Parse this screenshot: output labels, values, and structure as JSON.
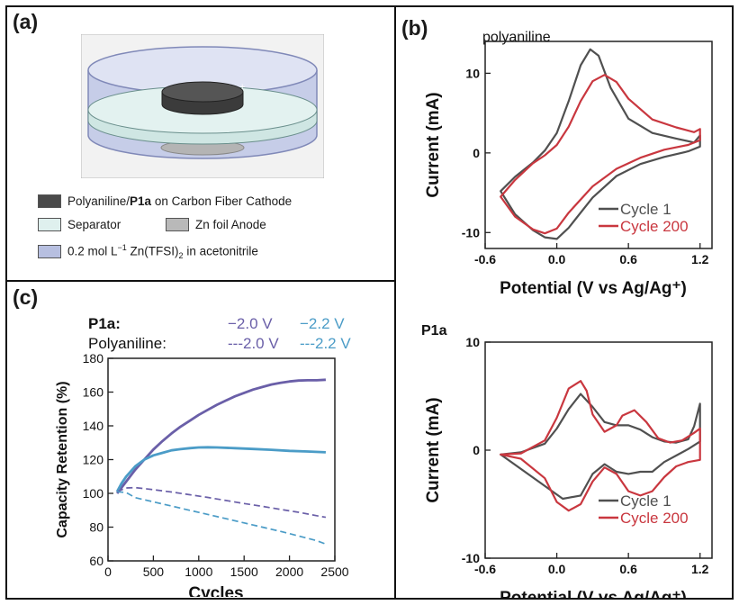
{
  "panels": {
    "a": {
      "label": "(a)",
      "legend": {
        "cathode": {
          "pre": "Polyaniline/",
          "bold": "P1a",
          "post": " on Carbon Fiber Cathode",
          "color": "#4a4a4a"
        },
        "separator": {
          "text": "Separator",
          "color": "#dff0ee"
        },
        "anode": {
          "text": "Zn foil Anode",
          "color": "#b9b9b9"
        },
        "electrolyte": {
          "pre": "0.2 mol L",
          "sup": "−1",
          "mid": " Zn(TFSI)",
          "sub": "2",
          "post": " in acetonitrile",
          "color": "#b7bfe0"
        }
      }
    },
    "b": {
      "label": "(b)"
    },
    "c": {
      "label": "(c)"
    }
  },
  "chart_data": [
    {
      "id": "cv-polyaniline",
      "type": "line",
      "title": "polyaniline",
      "xlabel": "Potential (V vs Ag/Ag⁺)",
      "ylabel": "Current (mA)",
      "xlim": [
        -0.6,
        1.3
      ],
      "ylim": [
        -12,
        14
      ],
      "xticks": [
        "-0.6",
        "0.0",
        "0.6",
        "1.2"
      ],
      "xtick_values": [
        -0.6,
        0.0,
        0.6,
        1.2
      ],
      "yticks": [
        "10",
        "0",
        "-10"
      ],
      "ytick_values": [
        10,
        0,
        -10
      ],
      "legend_position": "bottom-right",
      "series": [
        {
          "name": "Cycle 1",
          "color": "#505050",
          "x": [
            -0.47,
            -0.35,
            -0.2,
            -0.1,
            0.0,
            0.1,
            0.2,
            0.28,
            0.35,
            0.45,
            0.6,
            0.8,
            1.0,
            1.15,
            1.2,
            1.2,
            1.1,
            0.9,
            0.7,
            0.5,
            0.3,
            0.1,
            0.0,
            -0.1,
            -0.2,
            -0.35,
            -0.47
          ],
          "y": [
            -4.8,
            -3.0,
            -1.2,
            0.3,
            2.5,
            6.5,
            11.0,
            13.0,
            12.2,
            8.2,
            4.3,
            2.5,
            1.8,
            1.3,
            2.2,
            0.8,
            0.2,
            -0.5,
            -1.4,
            -2.9,
            -5.6,
            -9.4,
            -10.8,
            -10.6,
            -9.7,
            -7.7,
            -4.8
          ]
        },
        {
          "name": "Cycle 200",
          "color": "#c9373f",
          "x": [
            -0.47,
            -0.35,
            -0.2,
            -0.1,
            0.0,
            0.1,
            0.2,
            0.3,
            0.4,
            0.5,
            0.6,
            0.8,
            1.0,
            1.15,
            1.2,
            1.2,
            1.1,
            0.9,
            0.7,
            0.5,
            0.3,
            0.1,
            0.0,
            -0.1,
            -0.2,
            -0.35,
            -0.47
          ],
          "y": [
            -5.5,
            -3.4,
            -1.3,
            -0.3,
            1.0,
            3.3,
            6.5,
            9.0,
            9.8,
            8.9,
            6.8,
            4.2,
            3.2,
            2.6,
            3.0,
            1.6,
            1.0,
            0.4,
            -0.6,
            -2.0,
            -4.2,
            -7.5,
            -9.5,
            -10.1,
            -9.6,
            -8.0,
            -5.5
          ]
        }
      ]
    },
    {
      "id": "cv-p1a",
      "type": "line",
      "title": "P1a",
      "xlabel": "Potential (V vs Ag/Ag⁺)",
      "ylabel": "Current (mA)",
      "xlim": [
        -0.6,
        1.3
      ],
      "ylim": [
        -10,
        10
      ],
      "xticks": [
        "-0.6",
        "0.0",
        "0.6",
        "1.2"
      ],
      "xtick_values": [
        -0.6,
        0.0,
        0.6,
        1.2
      ],
      "yticks": [
        "10",
        "0",
        "-10"
      ],
      "ytick_values": [
        10,
        0,
        -10
      ],
      "legend_position": "bottom-right",
      "series": [
        {
          "name": "Cycle 1",
          "color": "#505050",
          "x": [
            -0.47,
            -0.3,
            -0.1,
            0.0,
            0.1,
            0.2,
            0.3,
            0.4,
            0.5,
            0.6,
            0.7,
            0.8,
            0.9,
            1.0,
            1.1,
            1.15,
            1.2,
            1.2,
            1.1,
            1.0,
            0.9,
            0.8,
            0.7,
            0.6,
            0.5,
            0.4,
            0.3,
            0.2,
            0.1,
            0.05
          ],
          "y": [
            -0.4,
            -0.2,
            0.6,
            2.0,
            3.8,
            5.2,
            4.0,
            2.6,
            2.3,
            2.3,
            1.9,
            1.2,
            0.8,
            0.7,
            1.0,
            2.2,
            4.3,
            0.8,
            0.1,
            -0.5,
            -1.1,
            -2.0,
            -2.0,
            -2.2,
            -2.0,
            -1.3,
            -2.2,
            -4.2,
            -4.4,
            -4.5
          ]
        },
        {
          "name": "Cycle 200",
          "color": "#c9373f",
          "x": [
            -0.47,
            -0.3,
            -0.1,
            0.0,
            0.1,
            0.2,
            0.25,
            0.3,
            0.4,
            0.5,
            0.55,
            0.65,
            0.75,
            0.85,
            0.95,
            1.05,
            1.15,
            1.2,
            1.2,
            1.1,
            1.0,
            0.9,
            0.8,
            0.7,
            0.6,
            0.5,
            0.4,
            0.3,
            0.2,
            0.1,
            0.0,
            -0.1,
            -0.3,
            -0.47
          ],
          "y": [
            -0.4,
            -0.3,
            0.9,
            3.0,
            5.7,
            6.4,
            5.5,
            3.3,
            1.7,
            2.3,
            3.2,
            3.7,
            2.6,
            1.1,
            0.7,
            0.9,
            1.6,
            2.0,
            -0.9,
            -1.1,
            -1.5,
            -2.5,
            -3.8,
            -4.2,
            -3.8,
            -2.2,
            -1.6,
            -2.9,
            -5.0,
            -5.6,
            -4.8,
            -2.6,
            -0.8,
            -0.4
          ]
        }
      ]
    },
    {
      "id": "capacity-retention",
      "type": "line",
      "xlabel": "Cycles",
      "ylabel": "Capacity Retention (%)",
      "xlim": [
        0,
        2500
      ],
      "ylim": [
        60,
        180
      ],
      "xticks": [
        "0",
        "500",
        "1000",
        "1500",
        "2000",
        "2500"
      ],
      "xtick_values": [
        0,
        500,
        1000,
        1500,
        2000,
        2500
      ],
      "yticks": [
        "60",
        "80",
        "100",
        "120",
        "140",
        "160",
        "180"
      ],
      "ytick_values": [
        60,
        80,
        100,
        120,
        140,
        160,
        180
      ],
      "legend": {
        "row1_label": "P1a:",
        "row2_label": "Polyaniline:",
        "entry_a": "−2.0 V",
        "entry_b": "−2.2 V",
        "entry_c": "---2.0 V",
        "entry_d": "---2.2 V"
      },
      "series": [
        {
          "name": "P1a 2.0 V",
          "color": "#6a5fa8",
          "dashed": false,
          "x": [
            100,
            200,
            300,
            400,
            500,
            600,
            700,
            800,
            900,
            1000,
            1100,
            1200,
            1300,
            1400,
            1500,
            1600,
            1700,
            1800,
            1900,
            2000,
            2100,
            2200,
            2300,
            2400
          ],
          "y": [
            100,
            107,
            114,
            120,
            126,
            131,
            135.5,
            139.5,
            143,
            146.5,
            149.5,
            152.5,
            155,
            157.5,
            159.5,
            161.5,
            163,
            164.5,
            165.5,
            166.3,
            166.8,
            167,
            167,
            167.3
          ]
        },
        {
          "name": "P1a 2.2 V",
          "color": "#4b9cc7",
          "dashed": false,
          "x": [
            100,
            150,
            200,
            300,
            400,
            500,
            600,
            700,
            800,
            900,
            1000,
            1100,
            1200,
            1400,
            1600,
            1800,
            2000,
            2200,
            2400
          ],
          "y": [
            101,
            106,
            110,
            116,
            120,
            122.5,
            124,
            125.5,
            126.2,
            126.8,
            127.2,
            127.3,
            127.2,
            126.8,
            126.3,
            125.8,
            125.2,
            124.8,
            124.3
          ]
        },
        {
          "name": "Polyaniline 2.0 V",
          "color": "#6a5fa8",
          "dashed": true,
          "x": [
            100,
            200,
            300,
            500,
            700,
            900,
            1100,
            1300,
            1500,
            1700,
            1900,
            2100,
            2300,
            2400
          ],
          "y": [
            101,
            103.2,
            103.4,
            102.2,
            100.8,
            99.2,
            97.6,
            95.8,
            94.0,
            92.3,
            90.5,
            88.8,
            86.8,
            85.8
          ]
        },
        {
          "name": "Polyaniline 2.2 V",
          "color": "#4b9cc7",
          "dashed": true,
          "x": [
            100,
            200,
            300,
            400,
            500,
            700,
            900,
            1100,
            1300,
            1500,
            1700,
            1900,
            2100,
            2300,
            2400
          ],
          "y": [
            101,
            100.5,
            97.5,
            96.2,
            95,
            92.5,
            90,
            87.5,
            85,
            82.5,
            80,
            77.5,
            74.8,
            72,
            70
          ]
        }
      ]
    }
  ]
}
